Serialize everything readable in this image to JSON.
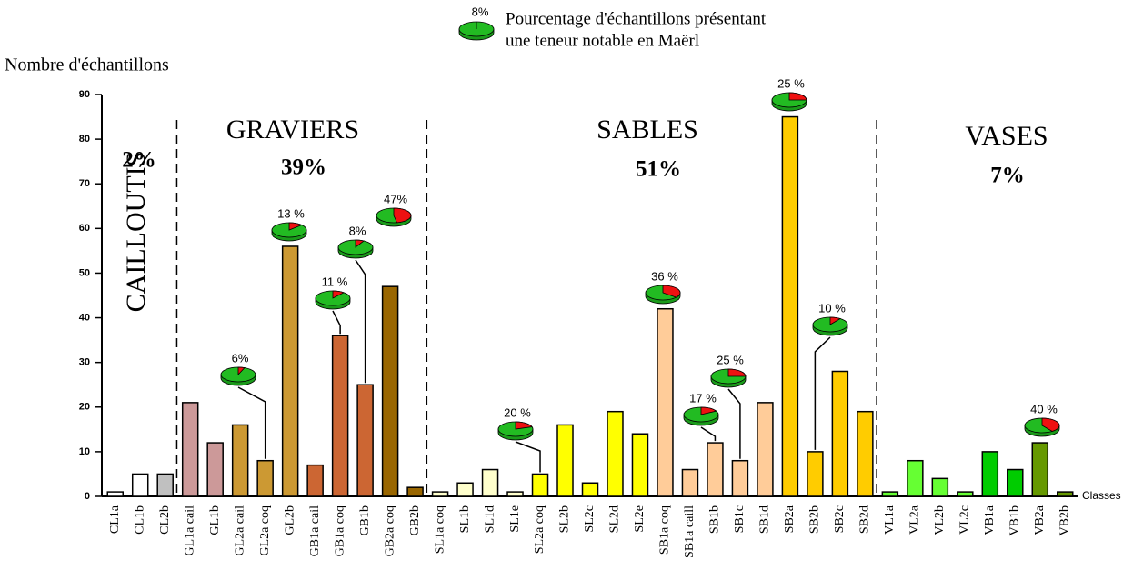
{
  "chart_data": {
    "type": "bar",
    "y_label": "Nombre d'échantillons",
    "x_label": "Classes",
    "legend": {
      "value": 8,
      "value_label": "8%",
      "text": [
        "Pourcentage d'échantillons présentant",
        "une teneur notable en Maërl"
      ]
    },
    "categories": [
      "CL1a",
      "CL1b",
      "CL2b",
      "GL1a cail",
      "GL1b",
      "GL2a cail",
      "GL2a coq",
      "GL2b",
      "GB1a cail",
      "GB1a coq",
      "GB1b",
      "GB2a coq",
      "GB2b",
      "SL1a coq",
      "SL1b",
      "SL1d",
      "SL1e",
      "SL2a coq",
      "SL2b",
      "SL2c",
      "SL2d",
      "SL2e",
      "SB1a coq",
      "SB1a caill",
      "SB1b",
      "SB1c",
      "SB1d",
      "SB2a",
      "SB2b",
      "SB2c",
      "SB2d",
      "VL1a",
      "VL2a",
      "VL2b",
      "VL2c",
      "VB1a",
      "VB1b",
      "VB2a",
      "VB2b"
    ],
    "values": [
      1,
      5,
      5,
      21,
      12,
      16,
      8,
      56,
      7,
      36,
      25,
      47,
      2,
      1,
      3,
      6,
      1,
      5,
      16,
      3,
      19,
      14,
      42,
      6,
      12,
      8,
      21,
      85,
      10,
      28,
      19,
      1,
      8,
      4,
      1,
      10,
      6,
      12,
      1
    ],
    "colors": [
      "#ffffff",
      "#ffffff",
      "#c0c0c0",
      "#cc9999",
      "#cc9999",
      "#cc9933",
      "#cc9933",
      "#cc9933",
      "#cc6633",
      "#cc6633",
      "#cc6633",
      "#996600",
      "#996600",
      "#ffffcc",
      "#ffffcc",
      "#ffffcc",
      "#ffffcc",
      "#ffff00",
      "#ffff00",
      "#ffff00",
      "#ffff00",
      "#ffff00",
      "#ffcc99",
      "#ffcc99",
      "#ffcc99",
      "#ffcc99",
      "#ffcc99",
      "#ffcc00",
      "#ffcc00",
      "#ffcc00",
      "#ffcc00",
      "#66ff33",
      "#66ff33",
      "#66ff33",
      "#66ff33",
      "#00cc00",
      "#00cc00",
      "#669900",
      "#669900"
    ],
    "ylim": [
      0,
      90
    ],
    "yticks": [
      0,
      10,
      20,
      30,
      40,
      50,
      60,
      70,
      80,
      90
    ],
    "sections": [
      {
        "name": "CAILLOUTIS",
        "value": 2,
        "value_label": "2%"
      },
      {
        "name": "GRAVIERS",
        "value": 39,
        "value_label": "39%"
      },
      {
        "name": "SABLES",
        "value": 51,
        "value_label": "51%"
      },
      {
        "name": "VASES",
        "value": 7,
        "value_label": "7%"
      }
    ],
    "pies": [
      {
        "category": "GL2a coq",
        "value": 6,
        "value_label": "6%"
      },
      {
        "category": "GL2b",
        "value": 13,
        "value_label": "13 %"
      },
      {
        "category": "GB1a coq",
        "value": 11,
        "value_label": "11 %"
      },
      {
        "category": "GB1b",
        "value": 8,
        "value_label": "8%"
      },
      {
        "category": "GB2a coq",
        "value": 47,
        "value_label": "47%"
      },
      {
        "category": "SL2a coq",
        "value": 20,
        "value_label": "20 %"
      },
      {
        "category": "SB1a coq",
        "value": 36,
        "value_label": "36 %"
      },
      {
        "category": "SB1b",
        "value": 17,
        "value_label": "17 %"
      },
      {
        "category": "SB1c",
        "value": 25,
        "value_label": "25 %"
      },
      {
        "category": "SB2a",
        "value": 25,
        "value_label": "25 %"
      },
      {
        "category": "SB2b",
        "value": 10,
        "value_label": "10 %"
      },
      {
        "category": "VB2a",
        "value": 40,
        "value_label": "40 %"
      }
    ]
  }
}
